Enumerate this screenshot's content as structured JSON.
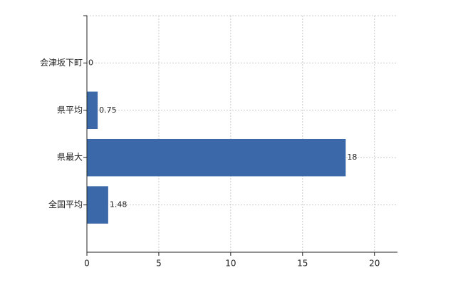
{
  "chart_data": {
    "type": "barh",
    "categories": [
      "会津坂下町",
      "県平均",
      "県最大",
      "全国平均"
    ],
    "values": [
      0,
      0.75,
      18,
      1.48
    ],
    "color": "#3a68a8",
    "xlim": [
      0,
      21.6
    ],
    "xticks": [
      0,
      5,
      10,
      15,
      20
    ],
    "grid": true
  }
}
